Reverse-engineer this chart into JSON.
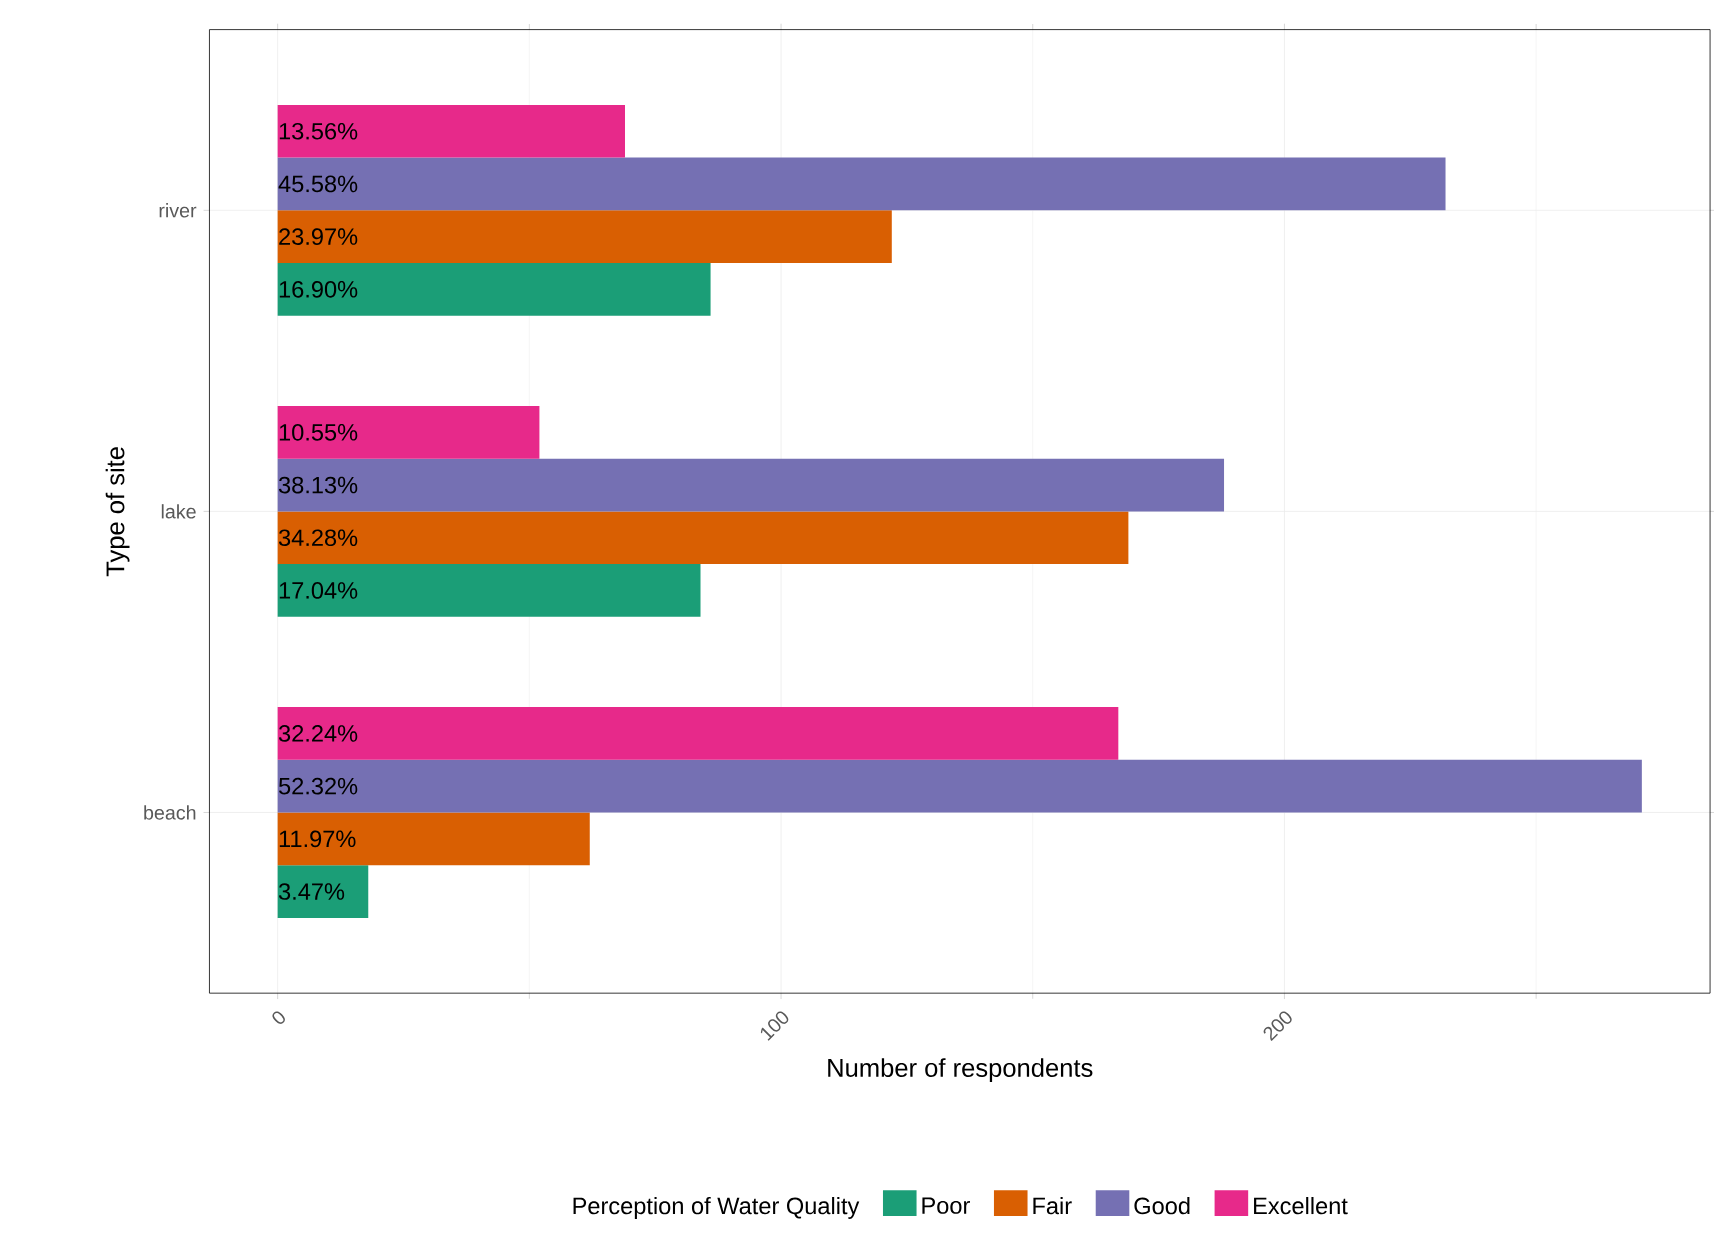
{
  "chart_data": {
    "type": "bar",
    "orientation": "horizontal",
    "xlabel": "Number of respondents",
    "ylabel": "Type of site",
    "legend_title": "Perception of Water Quality",
    "categories": [
      "river",
      "lake",
      "beach"
    ],
    "series": [
      {
        "name": "Poor",
        "color": "#1b9e77",
        "values": [
          86,
          84,
          18
        ]
      },
      {
        "name": "Fair",
        "color": "#d95f02",
        "values": [
          122,
          169,
          62
        ]
      },
      {
        "name": "Good",
        "color": "#7570b3",
        "values": [
          232,
          188,
          271
        ]
      },
      {
        "name": "Excellent",
        "color": "#e7298a",
        "values": [
          69,
          52,
          167
        ]
      }
    ],
    "annotations": [
      "16.90%",
      "17.04%",
      "3.47%",
      "23.97%",
      "34.28%",
      "11.97%",
      "45.58%",
      "38.13%",
      "52.32%",
      "13.56%",
      "10.55%",
      "32.24%"
    ],
    "xlim": [
      -13.55,
      284.55
    ],
    "xticks": [
      0,
      100,
      200
    ],
    "grid": true,
    "legend": "bottom"
  }
}
